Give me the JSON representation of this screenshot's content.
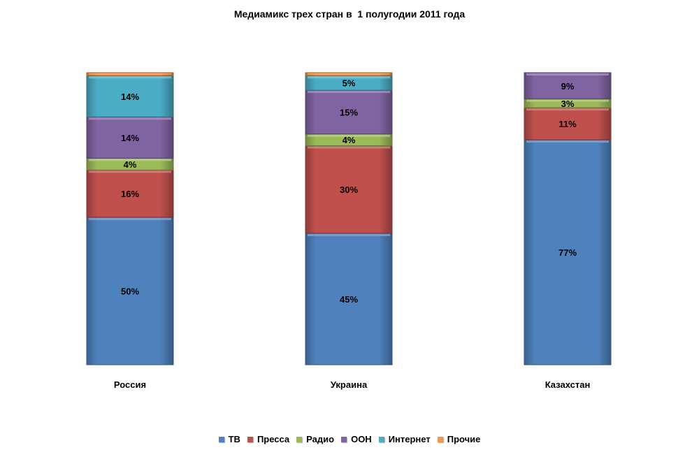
{
  "chart_data": {
    "type": "bar",
    "stacked": true,
    "title": "Медиамикс трех стран в  1 полугодии 2011 года",
    "categories": [
      "Россия",
      "Украина",
      "Казахстан"
    ],
    "series": [
      {
        "name": "ТВ",
        "color": "#4f81bd",
        "values": [
          50,
          45,
          77
        ],
        "labels": [
          "50%",
          "45%",
          "77%"
        ]
      },
      {
        "name": "Пресса",
        "color": "#c0504d",
        "values": [
          16,
          30,
          11
        ],
        "labels": [
          "16%",
          "30%",
          "11%"
        ]
      },
      {
        "name": "Радио",
        "color": "#9bbb59",
        "values": [
          4,
          4,
          3
        ],
        "labels": [
          "4%",
          "4%",
          "3%"
        ]
      },
      {
        "name": "ООН",
        "color": "#8064a2",
        "values": [
          14,
          15,
          9
        ],
        "labels": [
          "14%",
          "15%",
          "9%"
        ]
      },
      {
        "name": "Интернет",
        "color": "#4bacc6",
        "values": [
          14,
          5,
          0
        ],
        "labels": [
          "14%",
          "5%",
          ""
        ]
      },
      {
        "name": "Прочие",
        "color": "#f79646",
        "values": [
          1,
          1,
          0
        ],
        "labels": [
          "",
          "",
          ""
        ]
      }
    ],
    "ylim": [
      0,
      100
    ],
    "grid": false,
    "legend": "bottom"
  }
}
